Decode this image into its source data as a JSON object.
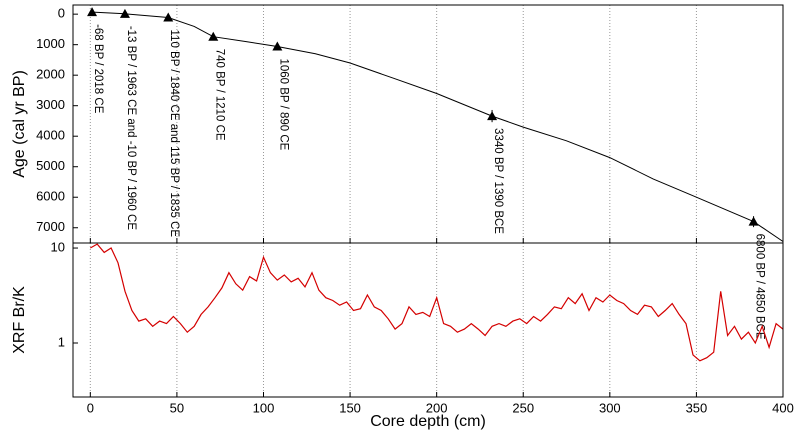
{
  "chart_data": [
    {
      "type": "line",
      "ylabel": "Age (cal yr BP)",
      "invert_y": true,
      "xlim": [
        -10,
        400
      ],
      "xticks": [
        0,
        50,
        100,
        150,
        200,
        250,
        300,
        350,
        400
      ],
      "ylim": [
        -300,
        7500
      ],
      "yticks": [
        0,
        1000,
        2000,
        3000,
        4000,
        5000,
        6000,
        7000
      ],
      "grid": true,
      "series": [
        {
          "color": "#000000",
          "x": [
            0,
            20,
            45,
            60,
            71,
            90,
            108,
            130,
            150,
            175,
            200,
            232,
            250,
            275,
            300,
            325,
            350,
            383,
            400
          ],
          "values": [
            -70,
            -10,
            110,
            400,
            740,
            900,
            1060,
            1300,
            1600,
            2100,
            2600,
            3340,
            3700,
            4150,
            4700,
            5400,
            6000,
            6800,
            7450
          ]
        }
      ],
      "points": {
        "color": "#000000",
        "x": [
          1,
          20,
          45,
          71,
          108,
          232,
          383
        ],
        "values": [
          -68,
          -10,
          110,
          740,
          1060,
          3340,
          6800
        ],
        "errors": [
          40,
          40,
          40,
          80,
          60,
          200,
          180
        ],
        "labels": [
          "-68 BP / 2018 CE",
          "-13 BP / 1963 CE  and -10 BP / 1960 CE",
          "110 BP / 1840 CE and 115 BP / 1835 CE",
          "740 BP / 1210 CE",
          "1060 BP / 890 CE",
          "3340 BP / 1390 BCE",
          "6800 BP / 4850 BCE"
        ]
      }
    },
    {
      "type": "line",
      "ylabel": "XRF Br/K",
      "xlabel": "Core depth (cm)",
      "log_y": true,
      "xlim": [
        -10,
        400
      ],
      "xticks": [
        0,
        50,
        100,
        150,
        200,
        250,
        300,
        350,
        400
      ],
      "ylim": [
        0.27,
        11.3
      ],
      "yticks": [
        1,
        10
      ],
      "grid": true,
      "series": [
        {
          "color": "#d40000",
          "x": [
            0,
            4,
            8,
            12,
            16,
            20,
            24,
            28,
            32,
            36,
            40,
            44,
            48,
            52,
            56,
            60,
            64,
            68,
            72,
            76,
            80,
            84,
            88,
            92,
            96,
            100,
            104,
            108,
            112,
            116,
            120,
            124,
            128,
            132,
            136,
            140,
            144,
            148,
            152,
            156,
            160,
            164,
            168,
            172,
            176,
            180,
            184,
            188,
            192,
            196,
            200,
            204,
            208,
            212,
            216,
            220,
            224,
            228,
            232,
            236,
            240,
            244,
            248,
            252,
            256,
            260,
            264,
            268,
            272,
            276,
            280,
            284,
            288,
            292,
            296,
            300,
            304,
            308,
            312,
            316,
            320,
            324,
            328,
            332,
            336,
            340,
            344,
            348,
            352,
            356,
            360,
            364,
            368,
            372,
            376,
            380,
            384,
            388,
            392,
            396,
            400
          ],
          "values": [
            10,
            11,
            9,
            10,
            7,
            3.5,
            2.2,
            1.7,
            1.8,
            1.5,
            1.7,
            1.6,
            1.9,
            1.6,
            1.3,
            1.5,
            2.0,
            2.4,
            3.0,
            3.8,
            5.5,
            4.2,
            3.6,
            5.0,
            4.5,
            8.0,
            5.5,
            4.6,
            5.2,
            4.4,
            4.8,
            3.9,
            5.5,
            3.6,
            3.0,
            2.8,
            2.5,
            2.7,
            2.2,
            2.3,
            3.2,
            2.4,
            2.2,
            1.8,
            1.4,
            1.6,
            2.4,
            2.0,
            2.1,
            1.9,
            3.0,
            1.6,
            1.5,
            1.3,
            1.4,
            1.6,
            1.4,
            1.2,
            1.5,
            1.6,
            1.5,
            1.7,
            1.8,
            1.6,
            1.9,
            1.7,
            2.0,
            2.4,
            2.3,
            3.0,
            2.6,
            3.3,
            2.2,
            3.0,
            2.7,
            3.2,
            2.8,
            2.6,
            2.2,
            2.0,
            2.5,
            2.4,
            1.9,
            2.2,
            2.6,
            2.0,
            1.6,
            0.75,
            0.65,
            0.7,
            0.8,
            3.5,
            1.2,
            1.5,
            1.1,
            1.3,
            1.0,
            1.5,
            0.9,
            1.6,
            1.4
          ]
        }
      ]
    }
  ]
}
